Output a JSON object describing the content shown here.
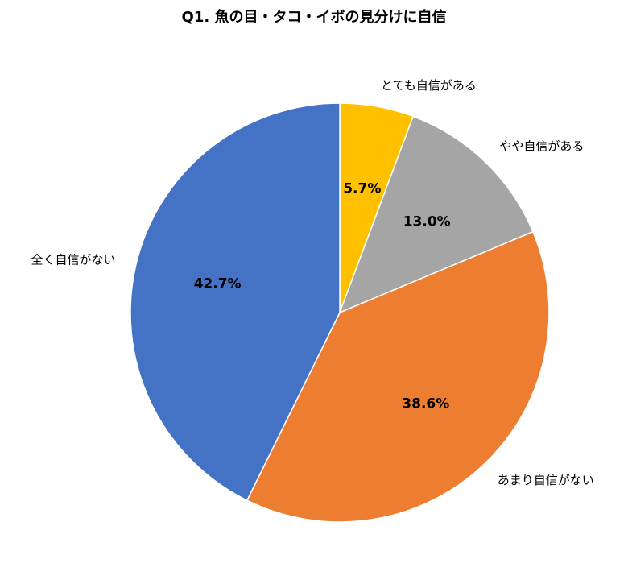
{
  "chart_data": {
    "type": "pie",
    "title": "Q1. 魚の目・タコ・イボの見分けに自信",
    "categories": [
      "とても自信がある",
      "やや自信がある",
      "あまり自信がない",
      "全く自信がない"
    ],
    "values": [
      5.7,
      13.0,
      38.6,
      42.7
    ],
    "value_labels": [
      "5.7%",
      "13.0%",
      "38.6%",
      "42.7%"
    ],
    "colors": [
      "#ffc000",
      "#a5a5a5",
      "#ed7d31",
      "#4472c4"
    ]
  }
}
